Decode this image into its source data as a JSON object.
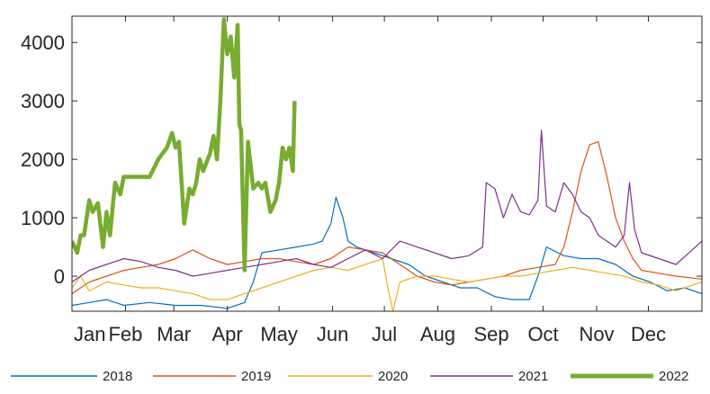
{
  "chart_data": {
    "type": "line",
    "title": "",
    "xlabel": "",
    "ylabel": "",
    "xlim": [
      0,
      365
    ],
    "ylim": [
      -600,
      4450
    ],
    "grid": false,
    "legend_position": "bottom",
    "y_ticks": [
      0,
      1000,
      2000,
      3000,
      4000
    ],
    "y_tick_labels": [
      "0",
      "1000",
      "2000",
      "3000",
      "4000"
    ],
    "x_ticks": [
      0,
      31,
      59,
      90,
      120,
      151,
      181,
      212,
      243,
      273,
      304,
      334
    ],
    "x_tick_labels": [
      "Jan",
      "Feb",
      "Mar",
      "Apr",
      "May",
      "Jun",
      "Jul",
      "Aug",
      "Sep",
      "Oct",
      "Nov",
      "Dec"
    ],
    "x_unit": "day of year",
    "series": [
      {
        "name": "2018",
        "color": "#0072BD",
        "line_width": 1.2,
        "x": [
          0,
          10,
          20,
          30,
          45,
          60,
          75,
          90,
          100,
          105,
          110,
          120,
          130,
          140,
          145,
          150,
          153,
          157,
          160,
          165,
          175,
          185,
          195,
          205,
          215,
          225,
          235,
          245,
          255,
          265,
          270,
          275,
          285,
          295,
          305,
          315,
          325,
          335,
          345,
          355,
          365
        ],
        "y": [
          -500,
          -450,
          -400,
          -500,
          -450,
          -500,
          -500,
          -550,
          -450,
          -100,
          400,
          450,
          500,
          550,
          600,
          900,
          1350,
          1000,
          600,
          500,
          400,
          300,
          200,
          0,
          -100,
          -200,
          -200,
          -350,
          -400,
          -400,
          0,
          500,
          350,
          300,
          300,
          200,
          0,
          -100,
          -250,
          -200,
          -300
        ]
      },
      {
        "name": "2019",
        "color": "#D95319",
        "line_width": 1.2,
        "x": [
          0,
          10,
          20,
          30,
          40,
          50,
          60,
          70,
          80,
          90,
          100,
          110,
          120,
          130,
          140,
          150,
          160,
          170,
          180,
          190,
          200,
          210,
          220,
          230,
          240,
          250,
          260,
          270,
          280,
          285,
          290,
          295,
          300,
          305,
          310,
          315,
          320,
          325,
          330,
          340,
          350,
          365
        ],
        "y": [
          -300,
          -100,
          0,
          100,
          150,
          200,
          300,
          450,
          300,
          200,
          250,
          300,
          300,
          250,
          200,
          300,
          500,
          450,
          400,
          200,
          0,
          -100,
          -150,
          -100,
          -50,
          0,
          100,
          150,
          200,
          500,
          1100,
          1800,
          2250,
          2300,
          1700,
          1000,
          600,
          300,
          100,
          50,
          0,
          -50
        ]
      },
      {
        "name": "2020",
        "color": "#EDB120",
        "line_width": 1.2,
        "x": [
          0,
          5,
          10,
          20,
          30,
          40,
          50,
          60,
          70,
          80,
          90,
          100,
          110,
          120,
          130,
          140,
          150,
          160,
          170,
          180,
          183,
          186,
          190,
          200,
          210,
          220,
          230,
          240,
          250,
          260,
          270,
          280,
          290,
          300,
          310,
          320,
          330,
          340,
          350,
          365
        ],
        "y": [
          -200,
          0,
          -250,
          -100,
          -150,
          -200,
          -200,
          -250,
          -300,
          -400,
          -400,
          -300,
          -200,
          -100,
          0,
          100,
          150,
          100,
          200,
          300,
          -200,
          -600,
          -100,
          0,
          0,
          -50,
          -100,
          -50,
          0,
          0,
          50,
          100,
          150,
          100,
          50,
          0,
          -100,
          -150,
          -250,
          -100
        ]
      },
      {
        "name": "2021",
        "color": "#7E2F8E",
        "line_width": 1.2,
        "x": [
          0,
          10,
          20,
          30,
          40,
          50,
          60,
          70,
          80,
          90,
          100,
          110,
          120,
          130,
          140,
          150,
          160,
          170,
          180,
          190,
          200,
          210,
          220,
          230,
          238,
          240,
          245,
          250,
          255,
          260,
          265,
          270,
          272,
          275,
          280,
          285,
          290,
          295,
          300,
          305,
          310,
          315,
          320,
          323,
          326,
          330,
          340,
          350,
          365
        ],
        "y": [
          -100,
          100,
          200,
          300,
          250,
          150,
          100,
          0,
          50,
          100,
          150,
          200,
          250,
          300,
          200,
          150,
          300,
          450,
          300,
          600,
          500,
          400,
          300,
          350,
          500,
          1600,
          1500,
          1000,
          1400,
          1100,
          1050,
          1300,
          2500,
          1200,
          1100,
          1600,
          1400,
          1100,
          1000,
          700,
          600,
          500,
          700,
          1600,
          800,
          400,
          300,
          200,
          600
        ]
      },
      {
        "name": "2022",
        "color": "#77AC30",
        "line_width": 4.5,
        "x": [
          0,
          3,
          5,
          7,
          10,
          12,
          15,
          18,
          20,
          22,
          25,
          28,
          30,
          32,
          35,
          38,
          40,
          45,
          50,
          55,
          58,
          60,
          62,
          65,
          68,
          70,
          72,
          74,
          76,
          78,
          80,
          82,
          84,
          86,
          88,
          90,
          92,
          94,
          96,
          97,
          98,
          100,
          102,
          105,
          108,
          110,
          112,
          115,
          118,
          120,
          122,
          124,
          126,
          128,
          129
        ],
        "y": [
          600,
          400,
          700,
          700,
          1300,
          1100,
          1250,
          500,
          1100,
          700,
          1600,
          1400,
          1700,
          1700,
          1700,
          1700,
          1700,
          1700,
          2000,
          2200,
          2450,
          2200,
          2300,
          900,
          1500,
          1400,
          1600,
          2000,
          1800,
          1950,
          2100,
          2400,
          2000,
          3000,
          4400,
          3800,
          4100,
          3400,
          4300,
          2600,
          2500,
          100,
          2300,
          1500,
          1600,
          1500,
          1600,
          1100,
          1300,
          1600,
          2200,
          2000,
          2200,
          1800,
          3000
        ]
      }
    ]
  }
}
